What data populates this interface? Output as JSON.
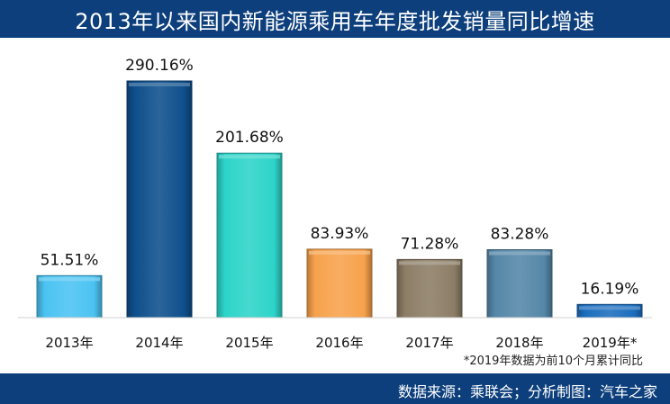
{
  "header": {
    "title": "2013年以来国内新能源乘用车年度批发销量同比增速"
  },
  "footnote": "*2019年数据为前10个月累计同比",
  "footer": {
    "source": "数据来源：乘联会；分析制图：汽车之家"
  },
  "chart_data": {
    "type": "bar",
    "title": "2013年以来国内新能源乘用车年度批发销量同比增速",
    "xlabel": "",
    "ylabel": "",
    "categories": [
      "2013年",
      "2014年",
      "2015年",
      "2016年",
      "2017年",
      "2018年",
      "2019年*"
    ],
    "values": [
      51.51,
      290.16,
      201.68,
      83.93,
      71.28,
      83.28,
      16.19
    ],
    "labels": [
      "51.51%",
      "290.16%",
      "201.68%",
      "83.93%",
      "71.28%",
      "83.28%",
      "16.19%"
    ],
    "colors": [
      "#4bc3f2",
      "#0e4f8c",
      "#2dd4c9",
      "#f7a24c",
      "#8c7d66",
      "#5587a8",
      "#1b6dbd"
    ],
    "ylim": [
      0,
      290.16
    ],
    "grid": false,
    "legend": "none"
  }
}
